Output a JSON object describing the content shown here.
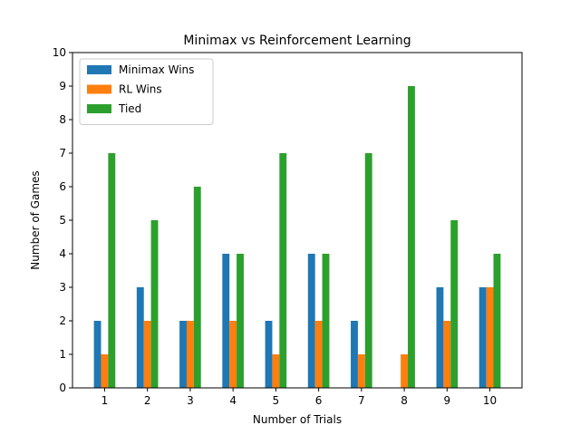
{
  "chart_data": {
    "type": "bar",
    "title": "Minimax vs Reinforcement Learning",
    "xlabel": "Number of Trials",
    "ylabel": "Number of Games",
    "categories": [
      "1",
      "2",
      "3",
      "4",
      "5",
      "6",
      "7",
      "8",
      "9",
      "10"
    ],
    "ylim": [
      0,
      10
    ],
    "yticks": [
      "0",
      "1",
      "2",
      "3",
      "4",
      "5",
      "6",
      "7",
      "8",
      "9",
      "10"
    ],
    "grid": false,
    "legend_position": "top-left",
    "series": [
      {
        "name": "Minimax Wins",
        "color": "#1f77b4",
        "values": [
          2,
          3,
          2,
          4,
          2,
          4,
          2,
          0,
          3,
          3
        ]
      },
      {
        "name": "RL Wins",
        "color": "#ff7f0e",
        "values": [
          1,
          2,
          2,
          2,
          1,
          2,
          1,
          1,
          2,
          3
        ]
      },
      {
        "name": "Tied",
        "color": "#2ca02c",
        "values": [
          7,
          5,
          6,
          4,
          7,
          4,
          7,
          9,
          5,
          4
        ]
      }
    ]
  }
}
